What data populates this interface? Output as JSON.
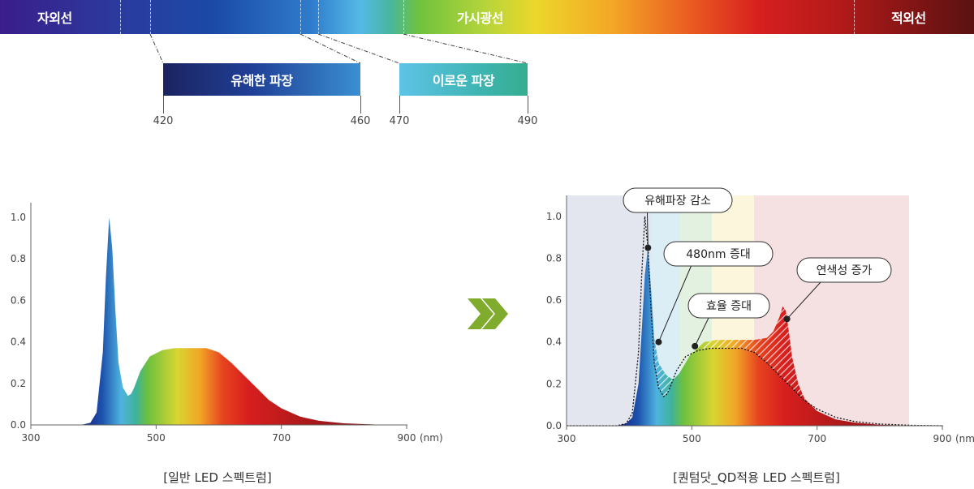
{
  "band": {
    "uv_label": "자외선",
    "visible_label": "가시광선",
    "ir_label": "적외선"
  },
  "zoom": {
    "harmful": {
      "label": "유해한 파장",
      "start": "420",
      "end": "460"
    },
    "beneficial": {
      "label": "이로운 파장",
      "start": "470",
      "end": "490"
    }
  },
  "arrow_icon": "double-chevron-right-icon",
  "chart_data": [
    {
      "type": "area",
      "caption": "[일반 LED 스펙트럼]",
      "xlabel": "(nm)",
      "x_ticks": [
        "300",
        "500",
        "700",
        "900"
      ],
      "y_ticks": [
        "0.0",
        "0.2",
        "0.4",
        "0.6",
        "0.8",
        "1.0"
      ],
      "xlim": [
        300,
        900
      ],
      "ylim": [
        0,
        1.0
      ],
      "grid": false,
      "series": [
        {
          "x": [
            300,
            380,
            395,
            405,
            415,
            420,
            425,
            430,
            435,
            440,
            447,
            455,
            460,
            465,
            475,
            490,
            510,
            530,
            550,
            580,
            600,
            620,
            640,
            660,
            680,
            700,
            730,
            760,
            800,
            850,
            900
          ],
          "y": [
            0,
            0,
            0.01,
            0.06,
            0.35,
            0.72,
            1.0,
            0.85,
            0.55,
            0.3,
            0.18,
            0.14,
            0.15,
            0.18,
            0.26,
            0.33,
            0.36,
            0.37,
            0.37,
            0.37,
            0.35,
            0.3,
            0.24,
            0.18,
            0.12,
            0.08,
            0.04,
            0.02,
            0.008,
            0.002,
            0
          ]
        }
      ]
    },
    {
      "type": "area",
      "caption": "[퀀텀닷_QD적용 LED 스펙트럼]",
      "xlabel": "(nm)",
      "x_ticks": [
        "300",
        "500",
        "700",
        "900"
      ],
      "y_ticks": [
        "0.0",
        "0.2",
        "0.4",
        "0.6",
        "0.8",
        "1.0"
      ],
      "xlim": [
        300,
        900
      ],
      "ylim": [
        0,
        1.1
      ],
      "grid": false,
      "annotations": [
        {
          "text": "유해파장 감소",
          "x": 430,
          "y": 0.85
        },
        {
          "text": "480nm 증대",
          "x": 447,
          "y": 0.4
        },
        {
          "text": "효율 증대",
          "x": 505,
          "y": 0.38
        },
        {
          "text": "연색성 증가",
          "x": 652,
          "y": 0.51
        }
      ],
      "series": [
        {
          "x": [
            300,
            380,
            395,
            405,
            415,
            420,
            425,
            430,
            435,
            440,
            447,
            455,
            460,
            470,
            480,
            490,
            500,
            520,
            540,
            560,
            580,
            600,
            620,
            630,
            640,
            645,
            650,
            655,
            660,
            670,
            680,
            700,
            730,
            760,
            800,
            850
          ],
          "y": [
            0,
            0,
            0.01,
            0.04,
            0.2,
            0.45,
            0.72,
            0.85,
            0.65,
            0.42,
            0.3,
            0.26,
            0.24,
            0.22,
            0.25,
            0.3,
            0.35,
            0.4,
            0.41,
            0.41,
            0.41,
            0.41,
            0.42,
            0.45,
            0.52,
            0.57,
            0.55,
            0.45,
            0.33,
            0.2,
            0.13,
            0.07,
            0.03,
            0.015,
            0.005,
            0
          ]
        },
        {
          "x": [
            300,
            380,
            395,
            405,
            415,
            420,
            425,
            430,
            435,
            440,
            447,
            455,
            460,
            465,
            475,
            490,
            510,
            530,
            550,
            580,
            600,
            620,
            640,
            660,
            680,
            700,
            730,
            760,
            800,
            850,
            900
          ],
          "y": [
            0,
            0,
            0.01,
            0.06,
            0.35,
            0.72,
            1.0,
            0.85,
            0.55,
            0.3,
            0.18,
            0.14,
            0.15,
            0.18,
            0.26,
            0.33,
            0.36,
            0.37,
            0.37,
            0.37,
            0.35,
            0.3,
            0.24,
            0.18,
            0.12,
            0.08,
            0.04,
            0.02,
            0.008,
            0.002,
            0
          ]
        }
      ]
    }
  ]
}
